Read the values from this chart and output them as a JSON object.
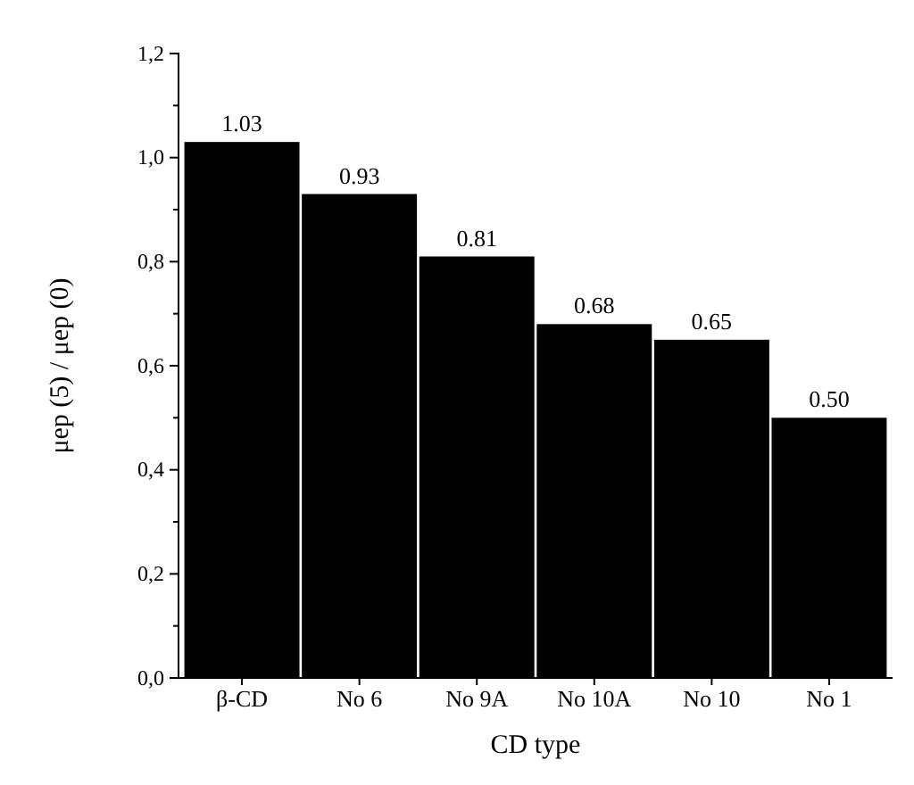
{
  "chart_data": {
    "type": "bar",
    "xlabel": "CD type",
    "ylabel": "μep (5) / μep (0)",
    "categories": [
      "β-CD",
      "No 6",
      "No 9A",
      "No 10A",
      "No 10",
      "No 1"
    ],
    "values": [
      1.03,
      0.93,
      0.81,
      0.68,
      0.65,
      0.5
    ],
    "value_labels": [
      "1.03",
      "0.93",
      "0.81",
      "0.68",
      "0.65",
      "0.50"
    ],
    "color": "#000000",
    "ylim": [
      0,
      1.2
    ],
    "yticks": [
      {
        "value": 0,
        "label": "0,0"
      },
      {
        "value": 0.1,
        "label": null
      },
      {
        "value": 0.2,
        "label": "0,2"
      },
      {
        "value": 0.3,
        "label": null
      },
      {
        "value": 0.4,
        "label": "0,4"
      },
      {
        "value": 0.5,
        "label": null
      },
      {
        "value": 0.6,
        "label": "0,6"
      },
      {
        "value": 0.7,
        "label": null
      },
      {
        "value": 0.8,
        "label": "0,8"
      },
      {
        "value": 0.9,
        "label": null
      },
      {
        "value": 1.0,
        "label": "1,0"
      },
      {
        "value": 1.1,
        "label": null
      },
      {
        "value": 1.2,
        "label": "1,2"
      }
    ],
    "grid": false
  }
}
